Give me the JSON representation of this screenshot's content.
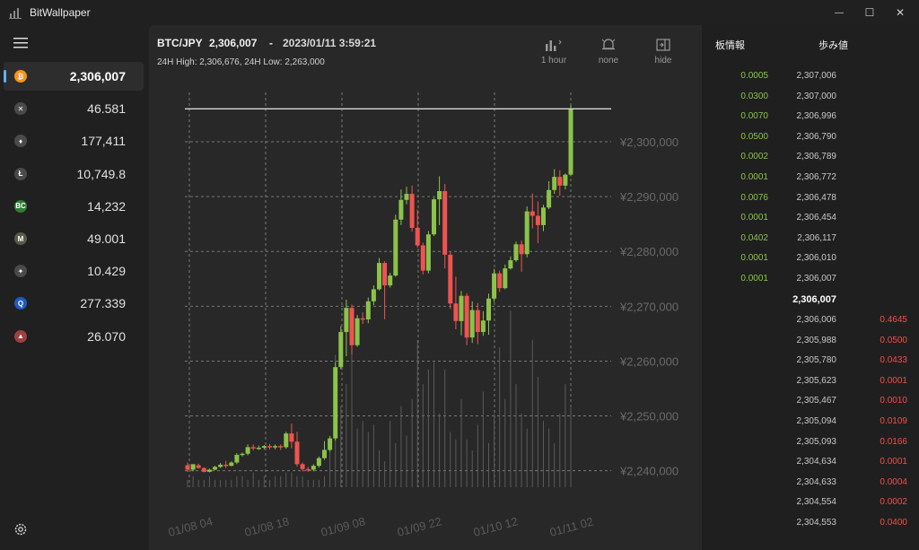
{
  "app": {
    "title": "BitWallpaper"
  },
  "window": {
    "minimize": "—",
    "maximize": "☐",
    "close": "✕"
  },
  "sidebar": {
    "coins": [
      {
        "icon": "bitcoin-icon",
        "symbol": "₿",
        "color": "#f7931a",
        "price": "2,306,007",
        "selected": true
      },
      {
        "icon": "xrp-icon",
        "symbol": "✕",
        "color": "#4a4a4a",
        "price": "46.581"
      },
      {
        "icon": "ethereum-icon",
        "symbol": "♦",
        "color": "#4a4a4a",
        "price": "177,411"
      },
      {
        "icon": "litecoin-icon",
        "symbol": "Ł",
        "color": "#4a4a4a",
        "price": "10,749.8"
      },
      {
        "icon": "bitcoin-cash-icon",
        "symbol": "BC",
        "color": "#2e7d32",
        "price": "14,232"
      },
      {
        "icon": "mona-icon",
        "symbol": "M",
        "color": "#5a5a4a",
        "price": "49.001"
      },
      {
        "icon": "xlm-icon",
        "symbol": "✦",
        "color": "#4a4a4a",
        "price": "10.429"
      },
      {
        "icon": "qtum-icon",
        "symbol": "Q",
        "color": "#1e5bc6",
        "price": "277.339"
      },
      {
        "icon": "bat-icon",
        "symbol": "▲",
        "color": "#a04040",
        "price": "26.070"
      }
    ]
  },
  "header": {
    "pair": "BTC/JPY",
    "price": "2,306,007",
    "dash": "-",
    "datetime": "2023/01/11 3:59:21",
    "high_low": "24H High:  2,306,676,    24H Low:  2,263,000"
  },
  "toolbar": {
    "interval_label": "1 hour",
    "alarm_label": "none",
    "hide_label": "hide"
  },
  "chart_data": {
    "type": "candlestick",
    "ylim": [
      2237000,
      2309000
    ],
    "y_ticks": [
      "¥2,240,000",
      "¥2,250,000",
      "¥2,260,000",
      "¥2,270,000",
      "¥2,280,000",
      "¥2,290,000",
      "¥2,300,000"
    ],
    "x_ticks": [
      "01/08 04",
      "01/08 18",
      "01/09 08",
      "01/09 22",
      "01/10 12",
      "01/11 02"
    ],
    "last_price": 2306007,
    "colors": {
      "up": "#8bc34a",
      "down": "#ef5350",
      "volume": "#5a5a5a",
      "grid": "#777777"
    },
    "candles": [
      [
        2241000,
        2241500,
        2240200,
        2239800
      ],
      [
        2240200,
        2241000,
        2241200,
        2239900
      ],
      [
        2241000,
        2241300,
        2240500,
        2240400
      ],
      [
        2240500,
        2240600,
        2239800,
        2239700
      ],
      [
        2239800,
        2240400,
        2240200,
        2239700
      ],
      [
        2240200,
        2240900,
        2240700,
        2240100
      ],
      [
        2240700,
        2241400,
        2241100,
        2240500
      ],
      [
        2241100,
        2241800,
        2240900,
        2240500
      ],
      [
        2240900,
        2241700,
        2241500,
        2240800
      ],
      [
        2241500,
        2243200,
        2242900,
        2241200
      ],
      [
        2242900,
        2243300,
        2243100,
        2242600
      ],
      [
        2243100,
        2244800,
        2244300,
        2242800
      ],
      [
        2244300,
        2244800,
        2244100,
        2243700
      ],
      [
        2244100,
        2244600,
        2244200,
        2243800
      ],
      [
        2244200,
        2244700,
        2244500,
        2243900
      ],
      [
        2244500,
        2244900,
        2244300,
        2243900
      ],
      [
        2244300,
        2244800,
        2244500,
        2243900
      ],
      [
        2244500,
        2244800,
        2244300,
        2243800
      ],
      [
        2244300,
        2247100,
        2246800,
        2244000
      ],
      [
        2246800,
        2248600,
        2245300,
        2244100
      ],
      [
        2245300,
        2247100,
        2241200,
        2240800
      ],
      [
        2241200,
        2241500,
        2240300,
        2239900
      ],
      [
        2240300,
        2240700,
        2240200,
        2239800
      ],
      [
        2240200,
        2241200,
        2240900,
        2239900
      ],
      [
        2240900,
        2242600,
        2242300,
        2240600
      ],
      [
        2242300,
        2245400,
        2243800,
        2242000
      ],
      [
        2243800,
        2246300,
        2245900,
        2243500
      ],
      [
        2245900,
        2259800,
        2258900,
        2245500
      ],
      [
        2258900,
        2266400,
        2265300,
        2258500
      ],
      [
        2265300,
        2271200,
        2269700,
        2260900
      ],
      [
        2269700,
        2270300,
        2262900,
        2261200
      ],
      [
        2262900,
        2268400,
        2267800,
        2262600
      ],
      [
        2267800,
        2268900,
        2267600,
        2266800
      ],
      [
        2267600,
        2271600,
        2270900,
        2266900
      ],
      [
        2270900,
        2273800,
        2273100,
        2270200
      ],
      [
        2273100,
        2278800,
        2277900,
        2272900
      ],
      [
        2277900,
        2278200,
        2273800,
        2267600
      ],
      [
        2273800,
        2276100,
        2275600,
        2273400
      ],
      [
        2275600,
        2286700,
        2285800,
        2275400
      ],
      [
        2285800,
        2291300,
        2289400,
        2284800
      ],
      [
        2289400,
        2291800,
        2290500,
        2288600
      ],
      [
        2290500,
        2292000,
        2284300,
        2283600
      ],
      [
        2284300,
        2287600,
        2281100,
        2280700
      ],
      [
        2281100,
        2281600,
        2276500,
        2275800
      ],
      [
        2276500,
        2283700,
        2283100,
        2276000
      ],
      [
        2283100,
        2289800,
        2289500,
        2282800
      ],
      [
        2289500,
        2293700,
        2291000,
        2284800
      ],
      [
        2291000,
        2292300,
        2279400,
        2276900
      ],
      [
        2279400,
        2280000,
        2270500,
        2269500
      ],
      [
        2270500,
        2275400,
        2267300,
        2265800
      ],
      [
        2267300,
        2272800,
        2271900,
        2264700
      ],
      [
        2271900,
        2272400,
        2264300,
        2262900
      ],
      [
        2264300,
        2270900,
        2269300,
        2263300
      ],
      [
        2269300,
        2270600,
        2265300,
        2263100
      ],
      [
        2265300,
        2269100,
        2267400,
        2264600
      ],
      [
        2267400,
        2272300,
        2271400,
        2264800
      ],
      [
        2271400,
        2276800,
        2276000,
        2270800
      ],
      [
        2276000,
        2276500,
        2273300,
        2272600
      ],
      [
        2273300,
        2277600,
        2276900,
        2273100
      ],
      [
        2276900,
        2279100,
        2278400,
        2276700
      ],
      [
        2278400,
        2281800,
        2281300,
        2278100
      ],
      [
        2281300,
        2282000,
        2279500,
        2276300
      ],
      [
        2279500,
        2288200,
        2287300,
        2278900
      ],
      [
        2287300,
        2290600,
        2286500,
        2284200
      ],
      [
        2286500,
        2289100,
        2284800,
        2281500
      ],
      [
        2284800,
        2288500,
        2288000,
        2283700
      ],
      [
        2288000,
        2292800,
        2291200,
        2287700
      ],
      [
        2291200,
        2295000,
        2293600,
        2290500
      ],
      [
        2293600,
        2294800,
        2292000,
        2290200
      ],
      [
        2292000,
        2294200,
        2294000,
        2291300
      ],
      [
        2294000,
        2306700,
        2306000,
        2293700
      ]
    ],
    "volumes": [
      2,
      3,
      2,
      2,
      3,
      2,
      2,
      2,
      2,
      3,
      3,
      2,
      4,
      2,
      3,
      2,
      3,
      3,
      4,
      4,
      3,
      3,
      2,
      2,
      2,
      3,
      14,
      36,
      22,
      28,
      46,
      16,
      18,
      15,
      17,
      10,
      7,
      18,
      12,
      22,
      14,
      24,
      40,
      28,
      32,
      34,
      20,
      32,
      15,
      13,
      24,
      13,
      10,
      17,
      26,
      12,
      20,
      38,
      24,
      48,
      28,
      20,
      16,
      40,
      30,
      18,
      16,
      12,
      20,
      28,
      22
    ]
  },
  "orderbook": {
    "tab_board": "板情報",
    "tab_trades": "歩み値",
    "asks": [
      {
        "qty": "0.0005",
        "price": "2,307,006"
      },
      {
        "qty": "0.0300",
        "price": "2,307,000"
      },
      {
        "qty": "0.0070",
        "price": "2,306,996"
      },
      {
        "qty": "0.0500",
        "price": "2,306,790"
      },
      {
        "qty": "0.0002",
        "price": "2,306,789"
      },
      {
        "qty": "0.0001",
        "price": "2,306,772"
      },
      {
        "qty": "0.0076",
        "price": "2,306,478"
      },
      {
        "qty": "0.0001",
        "price": "2,306,454"
      },
      {
        "qty": "0.0402",
        "price": "2,306,117"
      },
      {
        "qty": "0.0001",
        "price": "2,306,010"
      },
      {
        "qty": "0.0001",
        "price": "2,306,007"
      }
    ],
    "mid": "2,306,007",
    "bids": [
      {
        "price": "2,306,006",
        "qty": "0.4645"
      },
      {
        "price": "2,305,988",
        "qty": "0.0500"
      },
      {
        "price": "2,305,780",
        "qty": "0.0433"
      },
      {
        "price": "2,305,623",
        "qty": "0.0001"
      },
      {
        "price": "2,305,467",
        "qty": "0.0010"
      },
      {
        "price": "2,305,094",
        "qty": "0.0109"
      },
      {
        "price": "2,305,093",
        "qty": "0.0166"
      },
      {
        "price": "2,304,634",
        "qty": "0.0001"
      },
      {
        "price": "2,304,633",
        "qty": "0.0004"
      },
      {
        "price": "2,304,554",
        "qty": "0.0002"
      },
      {
        "price": "2,304,553",
        "qty": "0.0400"
      }
    ]
  }
}
